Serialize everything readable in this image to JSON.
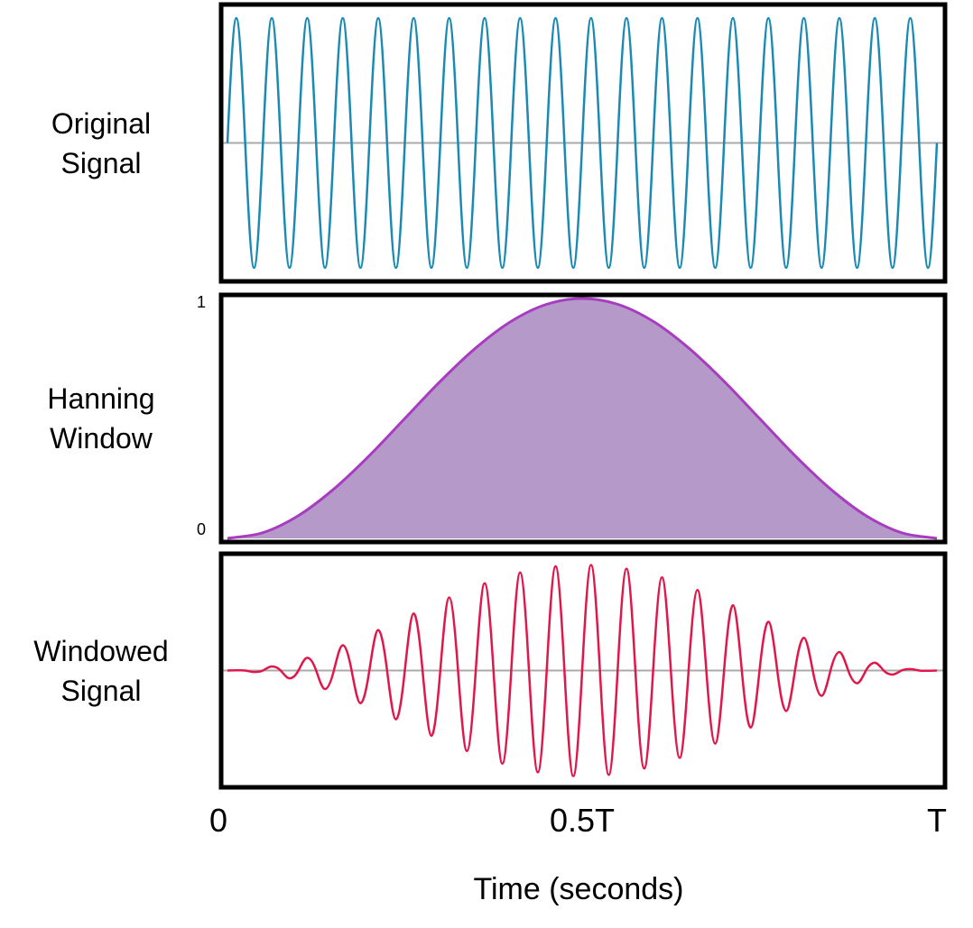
{
  "chart_data": [
    {
      "type": "line",
      "ylabel": "Original Signal",
      "color": "#1a8ab4",
      "ylim": [
        -1.08,
        1.08
      ],
      "xlim": [
        0,
        1
      ],
      "x": [
        0,
        0.0125,
        0.025,
        0.0375,
        0.05,
        0.0625,
        0.075,
        0.0875,
        0.1,
        0.1125,
        0.125,
        0.1375,
        0.15,
        0.1625,
        0.175,
        0.1875,
        0.2,
        0.2125,
        0.225,
        0.2375,
        0.25,
        0.2625,
        0.275,
        0.2875,
        0.3,
        0.3125,
        0.325,
        0.3375,
        0.35,
        0.3625,
        0.375,
        0.3875,
        0.4,
        0.4125,
        0.425,
        0.4375,
        0.45,
        0.4625,
        0.475,
        0.4875,
        0.5,
        0.5125,
        0.525,
        0.5375,
        0.55,
        0.5625,
        0.575,
        0.5875,
        0.6,
        0.6125,
        0.625,
        0.6375,
        0.65,
        0.6625,
        0.675,
        0.6875,
        0.7,
        0.7125,
        0.725,
        0.7375,
        0.75,
        0.7625,
        0.775,
        0.7875,
        0.8,
        0.8125,
        0.825,
        0.8375,
        0.85,
        0.8625,
        0.875,
        0.8875,
        0.9,
        0.9125,
        0.925,
        0.9375,
        0.95,
        0.9625,
        0.975,
        0.9875,
        1
      ],
      "values": [
        0,
        1,
        0,
        -1,
        0,
        1,
        0,
        -1,
        0,
        1,
        0,
        -1,
        0,
        1,
        0,
        -1,
        0,
        1,
        0,
        -1,
        0,
        1,
        0,
        -1,
        0,
        1,
        0,
        -1,
        0,
        1,
        0,
        -1,
        0,
        1,
        0,
        -1,
        0,
        1,
        0,
        -1,
        0,
        1,
        0,
        -1,
        0,
        1,
        0,
        -1,
        0,
        1,
        0,
        -1,
        0,
        1,
        0,
        -1,
        0,
        1,
        0,
        -1,
        0,
        1,
        0,
        -1,
        0,
        1,
        0,
        -1,
        0,
        1,
        0,
        -1,
        0,
        1,
        0,
        -1,
        0,
        1,
        0,
        -1,
        0
      ]
    },
    {
      "type": "area",
      "ylabel": "Hanning Window",
      "color": "#a83cc0",
      "fill": "#b599c9",
      "ylim": [
        0,
        1
      ],
      "yticks": [
        0,
        1
      ],
      "xlim": [
        0,
        1
      ],
      "x": [
        0,
        0.05,
        0.1,
        0.15,
        0.2,
        0.25,
        0.3,
        0.35,
        0.4,
        0.45,
        0.5,
        0.55,
        0.6,
        0.65,
        0.7,
        0.75,
        0.8,
        0.85,
        0.9,
        0.95,
        1
      ],
      "values": [
        0,
        0.024,
        0.095,
        0.206,
        0.345,
        0.5,
        0.655,
        0.794,
        0.905,
        0.976,
        1,
        0.976,
        0.905,
        0.794,
        0.655,
        0.5,
        0.345,
        0.206,
        0.095,
        0.024,
        0
      ]
    },
    {
      "type": "line",
      "ylabel": "Windowed Signal",
      "color": "#e0174a",
      "ylim": [
        -1.07,
        1.07
      ],
      "xlim": [
        0,
        1
      ],
      "xlabel": "Time (seconds)",
      "xticks": [
        0,
        {
          "value": 0.5,
          "label": "0.5T"
        },
        {
          "value": 1,
          "label": "T"
        }
      ],
      "x": [
        0,
        0.0125,
        0.025,
        0.0375,
        0.05,
        0.0625,
        0.075,
        0.0875,
        0.1,
        0.1125,
        0.125,
        0.1375,
        0.15,
        0.1625,
        0.175,
        0.1875,
        0.2,
        0.2125,
        0.225,
        0.2375,
        0.25,
        0.2625,
        0.275,
        0.2875,
        0.3,
        0.3125,
        0.325,
        0.3375,
        0.35,
        0.3625,
        0.375,
        0.3875,
        0.4,
        0.4125,
        0.425,
        0.4375,
        0.45,
        0.4625,
        0.475,
        0.4875,
        0.5,
        0.5125,
        0.525,
        0.5375,
        0.55,
        0.5625,
        0.575,
        0.5875,
        0.6,
        0.6125,
        0.625,
        0.6375,
        0.65,
        0.6625,
        0.675,
        0.6875,
        0.7,
        0.7125,
        0.725,
        0.7375,
        0.75,
        0.7625,
        0.775,
        0.7875,
        0.8,
        0.8125,
        0.825,
        0.8375,
        0.85,
        0.8625,
        0.875,
        0.8875,
        0.9,
        0.9125,
        0.925,
        0.9375,
        0.95,
        0.9625,
        0.975,
        0.9875,
        1
      ],
      "values": [
        0,
        0.002,
        0,
        -0.014,
        0,
        0.038,
        0,
        -0.074,
        0,
        0.12,
        0,
        -0.175,
        0,
        0.239,
        0,
        -0.309,
        0,
        0.383,
        0,
        -0.461,
        0,
        0.539,
        0,
        -0.617,
        0,
        0.691,
        0,
        -0.761,
        0,
        0.825,
        0,
        -0.88,
        0,
        0.926,
        0,
        -0.962,
        0,
        0.986,
        0,
        -0.998,
        0,
        0.998,
        0,
        -0.986,
        0,
        0.962,
        0,
        -0.926,
        0,
        0.88,
        0,
        -0.825,
        0,
        0.761,
        0,
        -0.691,
        0,
        0.617,
        0,
        -0.539,
        0,
        0.461,
        0,
        -0.383,
        0,
        0.309,
        0,
        -0.239,
        0,
        0.175,
        0,
        -0.12,
        0,
        0.074,
        0,
        -0.038,
        0,
        0.014,
        0,
        -0.002,
        0
      ]
    }
  ]
}
